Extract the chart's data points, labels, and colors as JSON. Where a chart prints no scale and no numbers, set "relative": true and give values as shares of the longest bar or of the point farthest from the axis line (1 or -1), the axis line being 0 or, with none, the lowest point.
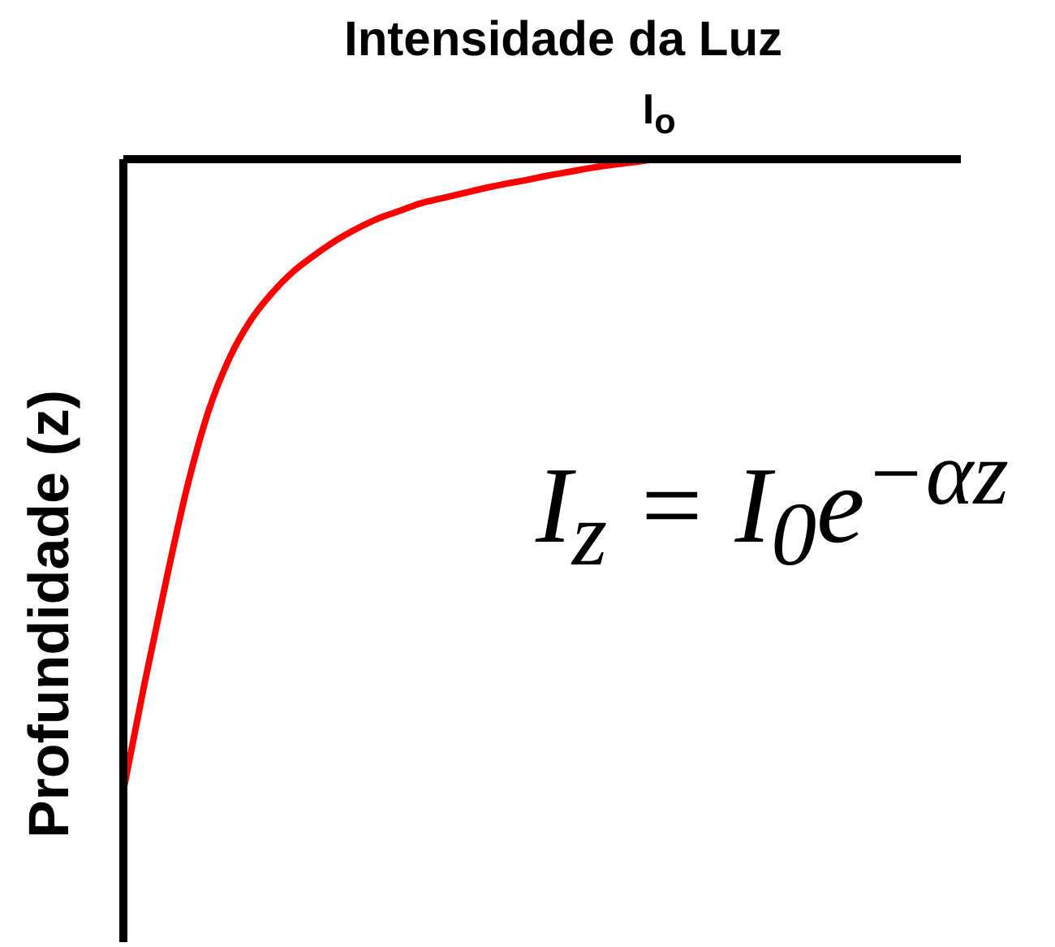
{
  "chart_data": {
    "type": "line",
    "xlabel": "Intensidade da Luz",
    "ylabel": "Profundidade (z)",
    "relative": true,
    "categories": [
      null,
      null,
      null,
      null,
      null,
      null,
      null,
      null,
      null,
      null,
      null,
      null,
      null,
      null,
      null,
      null,
      null,
      null,
      null,
      null,
      null,
      null,
      null,
      null,
      null,
      null
    ],
    "values": [
      -1,
      -0.83,
      -0.67,
      -0.52,
      -0.4,
      -0.315,
      -0.255,
      -0.212,
      -0.178,
      -0.152,
      -0.129,
      -0.11,
      -0.094,
      -0.082,
      -0.07,
      -0.062,
      -0.054,
      -0.046,
      -0.039,
      -0.033,
      -0.026,
      -0.02,
      -0.014,
      -0.009,
      -0.005,
      0
    ],
    "color": "#ff0000",
    "marker": "none",
    "line_style": "solid",
    "annotations": [
      {
        "text": "I$_{o}$",
        "y": 0
      },
      "I$_{z}$ = I$_{0}$e$^{−αz}$"
    ]
  }
}
